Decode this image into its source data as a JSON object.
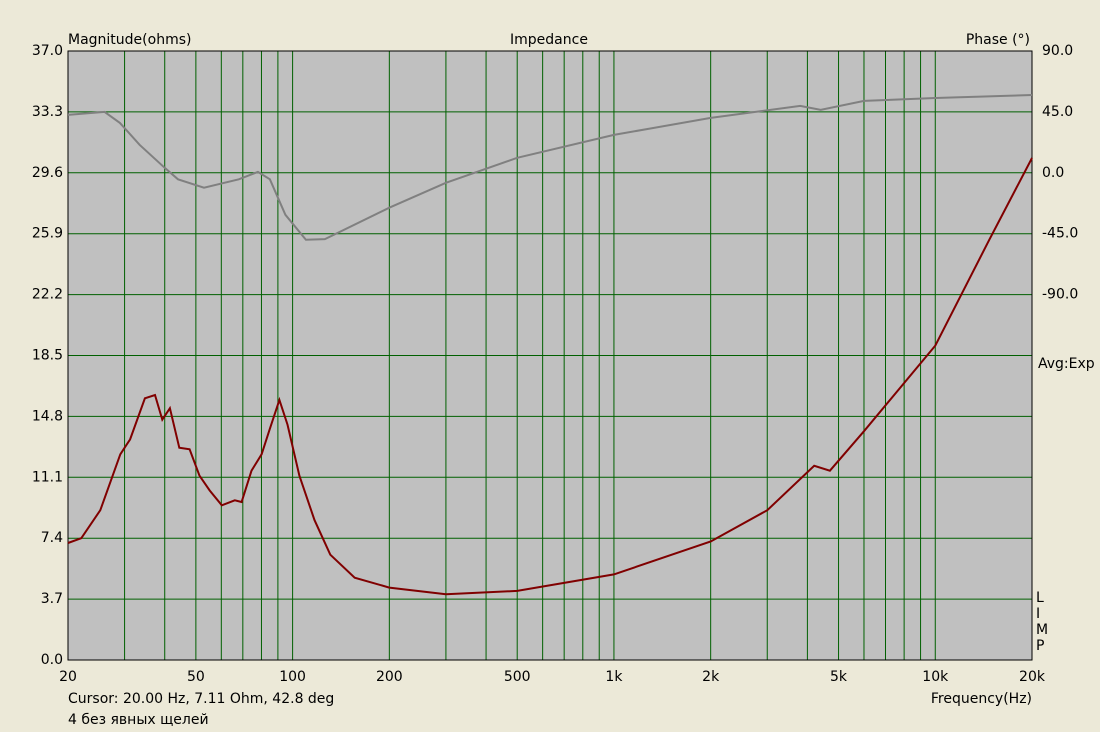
{
  "chart_data": {
    "type": "line",
    "title": "Impedance",
    "ylabel": "Magnitude(ohms)",
    "y2label": "Phase (°)",
    "xlabel": "Frequency(Hz)",
    "annotations": {
      "averaging": "Avg:Exp",
      "side_letters": [
        "L",
        "I",
        "M",
        "P"
      ],
      "cursor": "Cursor: 20.00 Hz, 7.11 Ohm, 42.8 deg",
      "note": "4 без явных щелей"
    },
    "xscale": "log",
    "xlim": [
      20,
      20000
    ],
    "xticks": [
      20,
      50,
      100,
      200,
      500,
      {
        "value": 1000,
        "label": "1k"
      },
      {
        "value": 2000,
        "label": "2k"
      },
      {
        "value": 5000,
        "label": "5k"
      },
      {
        "value": 10000,
        "label": "10k"
      },
      {
        "value": 20000,
        "label": "20k"
      }
    ],
    "xgrid_minor": [
      30,
      40,
      60,
      70,
      80,
      90,
      300,
      400,
      600,
      700,
      800,
      900,
      3000,
      4000,
      6000,
      7000,
      8000,
      9000
    ],
    "ylim": [
      0,
      37
    ],
    "yticks": [
      {
        "value": 0,
        "label": "0.0"
      },
      3.7,
      7.4,
      11.1,
      14.8,
      18.5,
      22.2,
      25.9,
      29.6,
      33.3,
      {
        "value": 37,
        "label": "37.0"
      }
    ],
    "y2lim": [
      -360,
      90
    ],
    "y2ticks": [
      {
        "value": 90,
        "label": "90.0"
      },
      {
        "value": 45,
        "label": "45.0"
      },
      {
        "value": 0,
        "label": "0.0"
      },
      {
        "value": -45,
        "label": "-45.0"
      },
      {
        "value": -90,
        "label": "-90.0"
      }
    ],
    "grid": true,
    "series": [
      {
        "name": "Magnitude",
        "color": "#800000",
        "x": [
          20,
          22,
          25.2,
          29.1,
          31.2,
          34.7,
          37.3,
          39.3,
          41.5,
          44.4,
          47.8,
          51.3,
          55.2,
          60.2,
          66.1,
          69.4,
          74.5,
          80.1,
          84.8,
          91,
          96.4,
          105,
          117,
          131,
          156,
          200,
          300,
          500,
          1000,
          2000,
          3000,
          4200,
          4700,
          6000,
          10000,
          14700,
          20000
        ],
        "values": [
          7.11,
          7.4,
          9.1,
          12.5,
          13.4,
          15.9,
          16.1,
          14.6,
          15.3,
          12.9,
          12.8,
          11.2,
          10.3,
          9.4,
          9.7,
          9.6,
          11.5,
          12.5,
          14.0,
          15.8,
          14.3,
          11.2,
          8.5,
          6.4,
          5.0,
          4.4,
          4.0,
          4.2,
          5.2,
          7.2,
          9.1,
          11.8,
          11.5,
          13.9,
          19.1,
          25.5,
          30.5
        ]
      },
      {
        "name": "Phase",
        "color": "#808080",
        "axis": "y2",
        "x": [
          20,
          26,
          29,
          33.4,
          40,
          44,
          53,
          68,
          78,
          85,
          95,
          110,
          126,
          200,
          300,
          500,
          1000,
          2000,
          3800,
          4400,
          6000,
          10000,
          20000
        ],
        "values": [
          42.8,
          45,
          36.9,
          20.7,
          3.7,
          -4.8,
          -11,
          -4.8,
          0.7,
          -4.8,
          -31,
          -49.4,
          -49,
          -25.8,
          -7.4,
          11.1,
          28,
          40.6,
          49.4,
          46.5,
          53.1,
          55.3,
          57.5
        ]
      }
    ]
  }
}
